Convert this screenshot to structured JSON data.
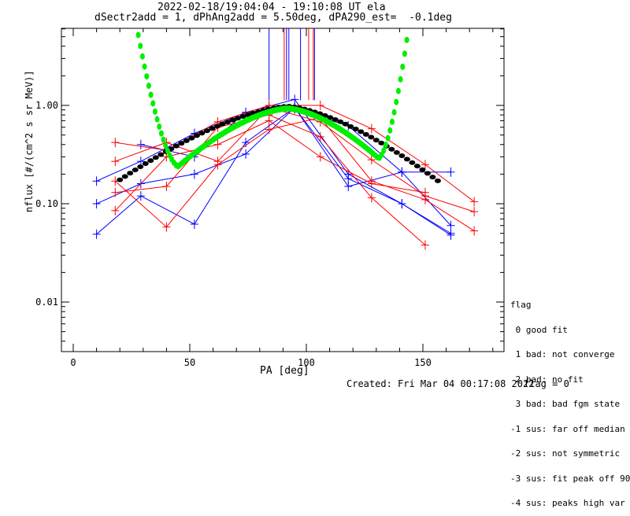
{
  "header": {
    "title_line1": "2022-02-18/19:04:04 - 19:10:08 UT ela",
    "title_line2": "dSectr2add = 1, dPhAng2add = 5.50deg, dPA290_est=  -0.1deg"
  },
  "footer": {
    "created": "Created: Fri Mar 04 00:17:08 2022",
    "flag_value": "flag = 0"
  },
  "legend": {
    "title": "flag",
    "items": [
      " 0 good fit",
      " 1 bad: not converge",
      " 2 bad: no fit",
      " 3 bad: bad fgm state",
      "-1 sus: far off median",
      "-2 sus: not symmetric",
      "-3 sus: fit peak off 90",
      "-4 sus: peaks high var"
    ]
  },
  "colors": {
    "blue": "#0000ff",
    "red": "#ff0000",
    "black": "#000000",
    "green": "#00ee00"
  },
  "chart_data": {
    "type": "line",
    "title": "2022-02-18/19:04:04 - 19:10:08 UT ela",
    "subtitle": "dSectr2add = 1, dPhAng2add = 5.50deg, dPA290_est=  -0.1deg",
    "xlabel": "PA [deg]",
    "ylabel": "nflux [#/(cm^2 s sr MeV)]",
    "xlim": [
      -5,
      185
    ],
    "ylim": [
      0.0025,
      6.3
    ],
    "yscale": "log",
    "xticks": [
      0,
      50,
      100,
      150
    ],
    "xtick_labels": [
      "0",
      "50",
      "100",
      "150"
    ],
    "yticks": [
      0.01,
      0.1,
      1.0
    ],
    "ytick_labels": [
      "0.01",
      "0.10",
      "1.00"
    ],
    "vertical_markers": [
      {
        "pa": 84,
        "color": "blue"
      },
      {
        "pa": 90.5,
        "color": "red"
      },
      {
        "pa": 91.5,
        "color": "blue"
      },
      {
        "pa": 92.5,
        "color": "blue"
      },
      {
        "pa": 97.5,
        "color": "blue"
      },
      {
        "pa": 101,
        "color": "red"
      },
      {
        "pa": 103,
        "color": "red"
      },
      {
        "pa": 103.5,
        "color": "blue"
      }
    ],
    "series": [
      {
        "name": "blue-1",
        "color": "blue",
        "x": [
          10,
          29,
          52,
          74,
          95,
          118,
          141,
          162
        ],
        "y": [
          0.17,
          0.27,
          0.52,
          0.85,
          1.15,
          0.2,
          0.1,
          0.05
        ]
      },
      {
        "name": "blue-2",
        "color": "blue",
        "x": [
          10,
          29,
          52,
          74,
          95,
          118,
          141,
          162
        ],
        "y": [
          0.1,
          0.16,
          0.2,
          0.32,
          0.95,
          0.18,
          0.1,
          0.048
        ]
      },
      {
        "name": "blue-3",
        "color": "blue",
        "x": [
          10,
          29,
          52,
          74,
          95,
          118,
          141,
          162
        ],
        "y": [
          0.049,
          0.12,
          0.062,
          0.42,
          0.95,
          0.15,
          0.21,
          0.06
        ]
      },
      {
        "name": "blue-4",
        "color": "blue",
        "x": [
          29,
          52,
          74,
          95,
          118,
          141,
          162
        ],
        "y": [
          0.4,
          0.3,
          0.85,
          0.92,
          0.62,
          0.21,
          0.21
        ]
      },
      {
        "name": "red-1",
        "color": "red",
        "x": [
          18,
          40,
          62,
          84,
          106,
          128,
          151,
          172
        ],
        "y": [
          0.42,
          0.35,
          0.68,
          1.0,
          1.0,
          0.58,
          0.25,
          0.105
        ]
      },
      {
        "name": "red-2",
        "color": "red",
        "x": [
          18,
          40,
          62,
          84,
          106,
          128,
          151,
          172
        ],
        "y": [
          0.27,
          0.42,
          0.27,
          0.95,
          0.68,
          0.28,
          0.12,
          0.083
        ]
      },
      {
        "name": "red-3",
        "color": "red",
        "x": [
          18,
          40,
          62,
          84,
          106,
          128,
          151,
          172
        ],
        "y": [
          0.17,
          0.058,
          0.25,
          0.57,
          0.75,
          0.17,
          0.11,
          0.053
        ]
      },
      {
        "name": "red-4",
        "color": "red",
        "x": [
          18,
          40,
          62,
          84,
          106,
          128,
          151
        ],
        "y": [
          0.13,
          0.15,
          0.6,
          0.8,
          0.48,
          0.115,
          0.038
        ]
      },
      {
        "name": "red-5",
        "color": "red",
        "x": [
          18,
          40,
          62,
          84,
          106,
          128,
          151
        ],
        "y": [
          0.085,
          0.3,
          0.4,
          0.7,
          0.3,
          0.16,
          0.13
        ]
      }
    ],
    "median_curve": {
      "name": "median",
      "color": "black",
      "x_range": [
        20,
        158
      ],
      "peak_pa": 92,
      "peak_value": 0.98,
      "edge_value_low": 0.175,
      "edge_value_high": 0.16
    },
    "fit_curve": {
      "name": "fit",
      "color": "green",
      "x_range": [
        27,
        144
      ],
      "min_left": {
        "pa": 45,
        "value": 0.24
      },
      "peak": {
        "pa": 92,
        "value": 0.93
      },
      "min_right": {
        "pa": 131,
        "value": 0.29
      }
    }
  }
}
